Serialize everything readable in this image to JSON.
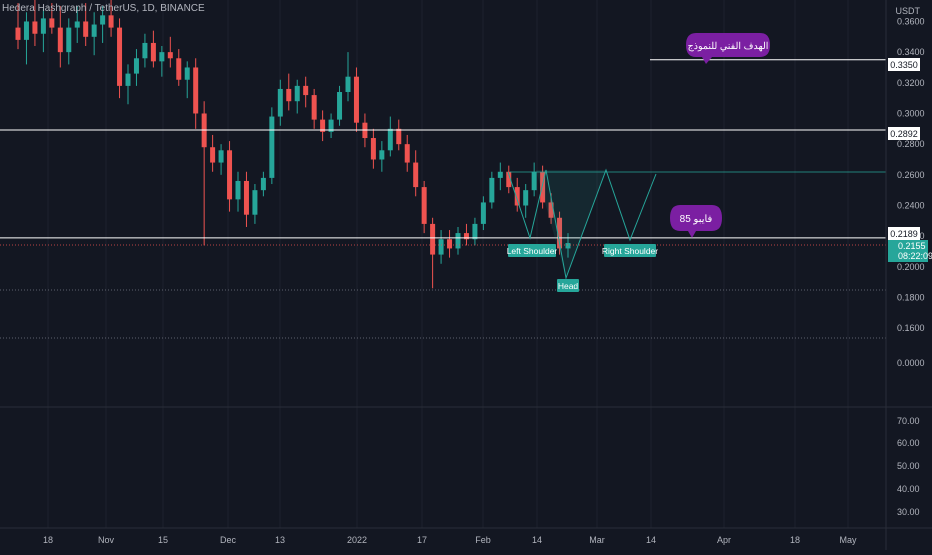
{
  "header": {
    "symbol_line": "Hedera Hashgraph / TetherUS, 1D, BINANCE"
  },
  "colors": {
    "background": "#131722",
    "grid": "#1e222d",
    "up": "#26a69a",
    "down": "#ef5350",
    "level_line": "#ffffff",
    "pattern": "#26a69a",
    "callout": "#7b1fa2",
    "price_marker": "#26a69a",
    "dotted": "#787b86"
  },
  "price_axis": {
    "currency": "USDT",
    "ticks": [
      "0.3600",
      "0.3400",
      "0.3200",
      "0.3000",
      "0.2800",
      "0.2600",
      "0.2400",
      "0.2200",
      "0.2000",
      "0.1800",
      "0.1600",
      "0.0000"
    ],
    "level_labels": [
      "0.3350",
      "0.2892",
      "0.2189"
    ],
    "last_price": "0.2155",
    "countdown": "08:22:09"
  },
  "indicator_axis": {
    "ticks": [
      "70.00",
      "60.00",
      "50.00",
      "40.00",
      "30.00"
    ]
  },
  "time_axis": {
    "ticks": [
      "18",
      "Nov",
      "15",
      "Dec",
      "13",
      "2022",
      "17",
      "Feb",
      "14",
      "Mar",
      "14",
      "Apr",
      "18",
      "May"
    ]
  },
  "annotations": {
    "target_callout": "الهدف الفني للنموذج",
    "fib_callout": "فايبو 85",
    "pattern_labels": [
      "Left Shoulder",
      "Head",
      "Right Shoulder"
    ]
  },
  "chart_data": {
    "type": "candlestick",
    "title": "Hedera Hashgraph / TetherUS, 1D, BINANCE",
    "ylim": [
      0.1536,
      0.374
    ],
    "horizontal_levels": [
      0.335,
      0.2892,
      0.2189
    ],
    "dotted_levels": [
      0.2155,
      0.185
    ],
    "last_price": 0.2155,
    "pattern": "Head and Shoulders (projected)",
    "neckline": 0.2642,
    "ohlc_sampled": [
      {
        "o": 0.356,
        "h": 0.372,
        "l": 0.342,
        "c": 0.348
      },
      {
        "o": 0.348,
        "h": 0.366,
        "l": 0.332,
        "c": 0.36
      },
      {
        "o": 0.36,
        "h": 0.374,
        "l": 0.344,
        "c": 0.352
      },
      {
        "o": 0.352,
        "h": 0.368,
        "l": 0.34,
        "c": 0.362
      },
      {
        "o": 0.362,
        "h": 0.372,
        "l": 0.352,
        "c": 0.356
      },
      {
        "o": 0.356,
        "h": 0.37,
        "l": 0.33,
        "c": 0.34
      },
      {
        "o": 0.34,
        "h": 0.362,
        "l": 0.332,
        "c": 0.356
      },
      {
        "o": 0.356,
        "h": 0.37,
        "l": 0.346,
        "c": 0.36
      },
      {
        "o": 0.36,
        "h": 0.372,
        "l": 0.344,
        "c": 0.35
      },
      {
        "o": 0.35,
        "h": 0.366,
        "l": 0.338,
        "c": 0.358
      },
      {
        "o": 0.358,
        "h": 0.37,
        "l": 0.346,
        "c": 0.364
      },
      {
        "o": 0.364,
        "h": 0.374,
        "l": 0.35,
        "c": 0.356
      },
      {
        "o": 0.356,
        "h": 0.362,
        "l": 0.31,
        "c": 0.318
      },
      {
        "o": 0.318,
        "h": 0.332,
        "l": 0.306,
        "c": 0.326
      },
      {
        "o": 0.326,
        "h": 0.342,
        "l": 0.318,
        "c": 0.336
      },
      {
        "o": 0.336,
        "h": 0.352,
        "l": 0.33,
        "c": 0.346
      },
      {
        "o": 0.346,
        "h": 0.354,
        "l": 0.33,
        "c": 0.334
      },
      {
        "o": 0.334,
        "h": 0.344,
        "l": 0.324,
        "c": 0.34
      },
      {
        "o": 0.34,
        "h": 0.35,
        "l": 0.33,
        "c": 0.336
      },
      {
        "o": 0.336,
        "h": 0.342,
        "l": 0.318,
        "c": 0.322
      },
      {
        "o": 0.322,
        "h": 0.334,
        "l": 0.31,
        "c": 0.33
      },
      {
        "o": 0.33,
        "h": 0.336,
        "l": 0.29,
        "c": 0.3
      },
      {
        "o": 0.3,
        "h": 0.308,
        "l": 0.214,
        "c": 0.278
      },
      {
        "o": 0.278,
        "h": 0.286,
        "l": 0.262,
        "c": 0.268
      },
      {
        "o": 0.268,
        "h": 0.28,
        "l": 0.26,
        "c": 0.276
      },
      {
        "o": 0.276,
        "h": 0.282,
        "l": 0.236,
        "c": 0.244
      },
      {
        "o": 0.244,
        "h": 0.262,
        "l": 0.236,
        "c": 0.256
      },
      {
        "o": 0.256,
        "h": 0.262,
        "l": 0.226,
        "c": 0.234
      },
      {
        "o": 0.234,
        "h": 0.254,
        "l": 0.228,
        "c": 0.25
      },
      {
        "o": 0.25,
        "h": 0.262,
        "l": 0.246,
        "c": 0.258
      },
      {
        "o": 0.258,
        "h": 0.304,
        "l": 0.254,
        "c": 0.298
      },
      {
        "o": 0.298,
        "h": 0.322,
        "l": 0.292,
        "c": 0.316
      },
      {
        "o": 0.316,
        "h": 0.326,
        "l": 0.302,
        "c": 0.308
      },
      {
        "o": 0.308,
        "h": 0.322,
        "l": 0.3,
        "c": 0.318
      },
      {
        "o": 0.318,
        "h": 0.324,
        "l": 0.304,
        "c": 0.312
      },
      {
        "o": 0.312,
        "h": 0.316,
        "l": 0.29,
        "c": 0.296
      },
      {
        "o": 0.296,
        "h": 0.302,
        "l": 0.282,
        "c": 0.288
      },
      {
        "o": 0.288,
        "h": 0.3,
        "l": 0.284,
        "c": 0.296
      },
      {
        "o": 0.296,
        "h": 0.318,
        "l": 0.292,
        "c": 0.314
      },
      {
        "o": 0.314,
        "h": 0.34,
        "l": 0.308,
        "c": 0.324
      },
      {
        "o": 0.324,
        "h": 0.33,
        "l": 0.288,
        "c": 0.294
      },
      {
        "o": 0.294,
        "h": 0.3,
        "l": 0.278,
        "c": 0.284
      },
      {
        "o": 0.284,
        "h": 0.29,
        "l": 0.264,
        "c": 0.27
      },
      {
        "o": 0.27,
        "h": 0.282,
        "l": 0.262,
        "c": 0.276
      },
      {
        "o": 0.276,
        "h": 0.298,
        "l": 0.272,
        "c": 0.29
      },
      {
        "o": 0.29,
        "h": 0.296,
        "l": 0.276,
        "c": 0.28
      },
      {
        "o": 0.28,
        "h": 0.286,
        "l": 0.262,
        "c": 0.268
      },
      {
        "o": 0.268,
        "h": 0.276,
        "l": 0.246,
        "c": 0.252
      },
      {
        "o": 0.252,
        "h": 0.256,
        "l": 0.222,
        "c": 0.228
      },
      {
        "o": 0.228,
        "h": 0.232,
        "l": 0.186,
        "c": 0.208
      },
      {
        "o": 0.208,
        "h": 0.224,
        "l": 0.202,
        "c": 0.218
      },
      {
        "o": 0.218,
        "h": 0.224,
        "l": 0.206,
        "c": 0.212
      },
      {
        "o": 0.212,
        "h": 0.226,
        "l": 0.208,
        "c": 0.222
      },
      {
        "o": 0.222,
        "h": 0.228,
        "l": 0.214,
        "c": 0.218
      },
      {
        "o": 0.218,
        "h": 0.232,
        "l": 0.214,
        "c": 0.228
      },
      {
        "o": 0.228,
        "h": 0.246,
        "l": 0.224,
        "c": 0.242
      },
      {
        "o": 0.242,
        "h": 0.262,
        "l": 0.238,
        "c": 0.258
      },
      {
        "o": 0.258,
        "h": 0.268,
        "l": 0.25,
        "c": 0.262
      },
      {
        "o": 0.262,
        "h": 0.266,
        "l": 0.248,
        "c": 0.252
      },
      {
        "o": 0.252,
        "h": 0.258,
        "l": 0.236,
        "c": 0.24
      },
      {
        "o": 0.24,
        "h": 0.254,
        "l": 0.232,
        "c": 0.25
      },
      {
        "o": 0.25,
        "h": 0.268,
        "l": 0.246,
        "c": 0.262
      },
      {
        "o": 0.262,
        "h": 0.266,
        "l": 0.238,
        "c": 0.242
      },
      {
        "o": 0.242,
        "h": 0.248,
        "l": 0.228,
        "c": 0.232
      },
      {
        "o": 0.232,
        "h": 0.236,
        "l": 0.208,
        "c": 0.212
      },
      {
        "o": 0.212,
        "h": 0.222,
        "l": 0.206,
        "c": 0.2155
      }
    ]
  }
}
